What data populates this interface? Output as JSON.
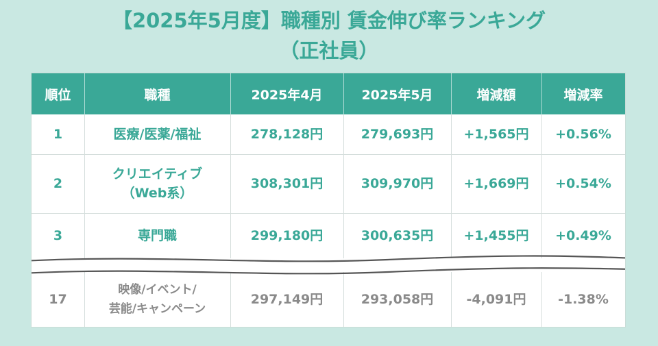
{
  "title": {
    "line1": "【2025年5月度】職種別 賃金伸び率ランキング",
    "line2": "（正社員）"
  },
  "chart_data": {
    "type": "table",
    "columns": [
      "順位",
      "職種",
      "2025年4月",
      "2025年5月",
      "増減額",
      "増減率"
    ],
    "rows": [
      {
        "rank": "1",
        "job": [
          "医療/医薬/福祉"
        ],
        "april": "278,128円",
        "may": "279,693円",
        "diff": "+1,565円",
        "rate": "+0.56%"
      },
      {
        "rank": "2",
        "job": [
          "クリエイティブ",
          "（Web系）"
        ],
        "april": "308,301円",
        "may": "309,970円",
        "diff": "+1,669円",
        "rate": "+0.54%"
      },
      {
        "rank": "3",
        "job": [
          "専門職"
        ],
        "april": "299,180円",
        "may": "300,635円",
        "diff": "+1,455円",
        "rate": "+0.49%"
      },
      {
        "rank": "17",
        "job": [
          "映像/イベント/",
          "芸能/キャンペーン"
        ],
        "april": "297,149円",
        "may": "293,058円",
        "diff": "-4,091円",
        "rate": "-1.38%"
      }
    ],
    "colors": {
      "accent": "#3aa897",
      "background": "#c9e8e2",
      "negative_text": "#8a8a8a"
    }
  }
}
